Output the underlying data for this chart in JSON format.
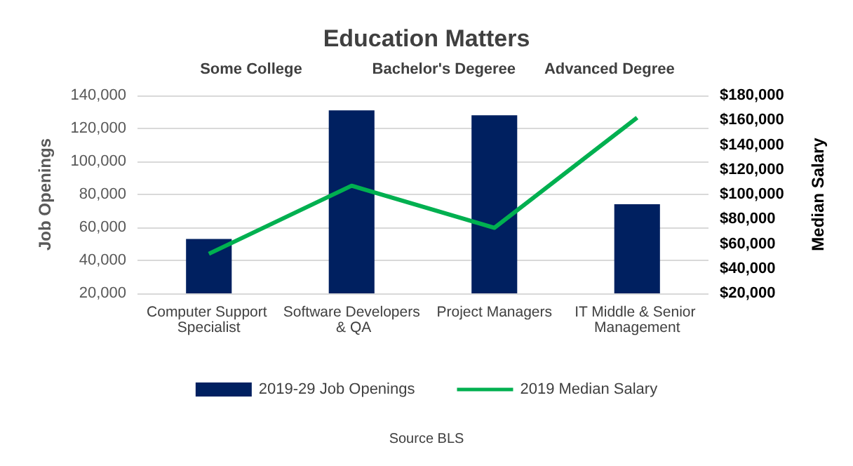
{
  "chart_data": {
    "type": "bar",
    "title": "Education Matters",
    "annotations": [
      "Some College",
      "Bachelor's Degeree",
      "Advanced Degree",
      "Source BLS"
    ],
    "categories": [
      "Computer Support Specialist",
      "Software Developers & QA",
      "Project Managers",
      "IT Middle & Senior Management"
    ],
    "series": [
      {
        "name": "2019-29 Job Openings",
        "color": "#002060",
        "values": [
          53000,
          131000,
          128000,
          74000
        ]
      },
      {
        "name": "2019 Median Salary",
        "type": "line",
        "axis": "y2",
        "color": "#00b050",
        "values": [
          52000,
          107000,
          73000,
          162000
        ]
      }
    ],
    "ylabel": "Job Openings",
    "y2label": "Median Salary",
    "ylim": [
      20000,
      140000
    ],
    "yticks": [
      {
        "value": 20000,
        "label": "20,000"
      },
      {
        "value": 40000,
        "label": "40,000"
      },
      {
        "value": 60000,
        "label": "60,000"
      },
      {
        "value": 80000,
        "label": "80,000"
      },
      {
        "value": 100000,
        "label": "100,000"
      },
      {
        "value": 120000,
        "label": "120,000"
      },
      {
        "value": 140000,
        "label": "140,000"
      }
    ],
    "y2lim": [
      20000,
      180000
    ],
    "y2ticks": [
      {
        "value": 20000,
        "label": "$20,000"
      },
      {
        "value": 40000,
        "label": "$40,000"
      },
      {
        "value": 60000,
        "label": "$60,000"
      },
      {
        "value": 80000,
        "label": "$80,000"
      },
      {
        "value": 100000,
        "label": "$100,000"
      },
      {
        "value": 120000,
        "label": "$120,000"
      },
      {
        "value": 140000,
        "label": "$140,000"
      },
      {
        "value": 160000,
        "label": "$160,000"
      },
      {
        "value": 180000,
        "label": "$180,000"
      }
    ],
    "grid": "y",
    "legend": "bottom",
    "marker": "none"
  }
}
